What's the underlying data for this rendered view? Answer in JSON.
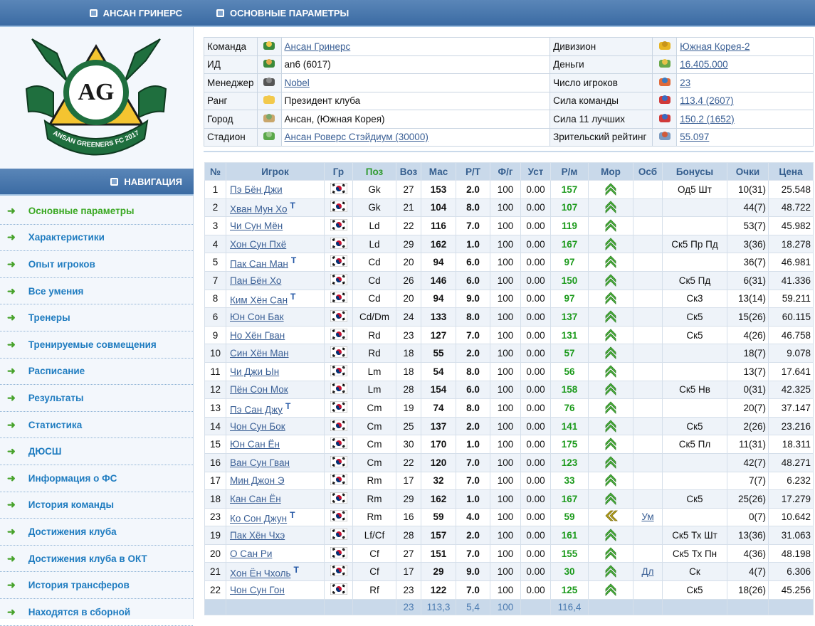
{
  "sidebar": {
    "title": "АНСАН ГРИНЕРС",
    "logo": {
      "monogram": "AG",
      "banner": "ANSAN GREENERS FC 2017"
    },
    "nav_title": "НАВИГАЦИЯ",
    "nav": [
      "Основные параметры",
      "Характеристики",
      "Опыт игроков",
      "Все умения",
      "Тренеры",
      "Тренируемые совмещения",
      "Расписание",
      "Результаты",
      "Статистика",
      "ДЮСШ",
      "Информация о ФС",
      "История команды",
      "Достижения клуба",
      "Достижения клуба в ОКТ",
      "История трансферов",
      "Находятся в сборной"
    ]
  },
  "main": {
    "title": "ОСНОВНЫЕ ПАРАМЕТРЫ",
    "info": [
      [
        {
          "label": "Команда",
          "value": "Ансан Гринерс",
          "link": true
        },
        {
          "label": "Дивизион",
          "value": "Южная Корея-2",
          "link": true
        }
      ],
      [
        {
          "label": "ИД",
          "value": "an6 (6017)",
          "link": false
        },
        {
          "label": "Деньги",
          "value": "16.405.000",
          "link": true
        }
      ],
      [
        {
          "label": "Менеджер",
          "value": "Nobel",
          "link": true
        },
        {
          "label": "Число игроков",
          "value": "23",
          "link": true
        }
      ],
      [
        {
          "label": "Ранг",
          "value": "Президент клуба",
          "link": false
        },
        {
          "label": "Сила команды",
          "value": "113.4 (2607)",
          "link": true
        }
      ],
      [
        {
          "label": "Город",
          "value": "Ансан, (Южная Корея)",
          "link": false
        },
        {
          "label": "Сила 11 лучших",
          "value": "150.2 (1652)",
          "link": true
        }
      ],
      [
        {
          "label": "Стадион",
          "value": "Ансан Роверс Стэйдиум (30000)",
          "link": true
        },
        {
          "label": "Зрительский рейтинг",
          "value": "55.097",
          "link": true
        }
      ]
    ],
    "players": {
      "columns": [
        "№",
        "Игрок",
        "Гр",
        "Поз",
        "Воз",
        "Мас",
        "Р/Т",
        "Ф/г",
        "Уст",
        "Р/м",
        "Мор",
        "Осб",
        "Бонусы",
        "Очки",
        "Цена"
      ],
      "rows": [
        {
          "n": "1",
          "name": "Пэ Бён Джи",
          "tag": null,
          "pos": "Gk",
          "age": "27",
          "mas": "153",
          "rt": "2.0",
          "fg": "100",
          "ust": "0.00",
          "rm": "157",
          "mor": "up",
          "osb": null,
          "bonus": "Од5 Шт",
          "pts": "10(31)",
          "price": "25.548"
        },
        {
          "n": "2",
          "name": "Хван Мун Хо",
          "tag": "Т",
          "pos": "Gk",
          "age": "21",
          "mas": "104",
          "rt": "8.0",
          "fg": "100",
          "ust": "0.00",
          "rm": "107",
          "mor": "up",
          "osb": null,
          "bonus": null,
          "pts": "44(7)",
          "price": "48.722"
        },
        {
          "n": "3",
          "name": "Чи Сун Мён",
          "tag": null,
          "pos": "Ld",
          "age": "22",
          "mas": "116",
          "rt": "7.0",
          "fg": "100",
          "ust": "0.00",
          "rm": "119",
          "mor": "up",
          "osb": null,
          "bonus": null,
          "pts": "53(7)",
          "price": "45.982"
        },
        {
          "n": "4",
          "name": "Хон Сун Пхё",
          "tag": null,
          "pos": "Ld",
          "age": "29",
          "mas": "162",
          "rt": "1.0",
          "fg": "100",
          "ust": "0.00",
          "rm": "167",
          "mor": "up",
          "osb": null,
          "bonus": "Ск5 Пр Пд",
          "pts": "3(36)",
          "price": "18.278"
        },
        {
          "n": "5",
          "name": "Пак Сан Ман",
          "tag": "Т",
          "pos": "Cd",
          "age": "20",
          "mas": "94",
          "rt": "6.0",
          "fg": "100",
          "ust": "0.00",
          "rm": "97",
          "mor": "up",
          "osb": null,
          "bonus": null,
          "pts": "36(7)",
          "price": "46.981"
        },
        {
          "n": "7",
          "name": "Пан Бён Хо",
          "tag": null,
          "pos": "Cd",
          "age": "26",
          "mas": "146",
          "rt": "6.0",
          "fg": "100",
          "ust": "0.00",
          "rm": "150",
          "mor": "up",
          "osb": null,
          "bonus": "Ск5 Пд",
          "pts": "6(31)",
          "price": "41.336"
        },
        {
          "n": "8",
          "name": "Ким Хён Сан",
          "tag": "Т",
          "pos": "Cd",
          "age": "20",
          "mas": "94",
          "rt": "9.0",
          "fg": "100",
          "ust": "0.00",
          "rm": "97",
          "mor": "up",
          "osb": null,
          "bonus": "Ск3",
          "pts": "13(14)",
          "price": "59.211"
        },
        {
          "n": "6",
          "name": "Юн Сон Бак",
          "tag": null,
          "pos": "Cd/Dm",
          "age": "24",
          "mas": "133",
          "rt": "8.0",
          "fg": "100",
          "ust": "0.00",
          "rm": "137",
          "mor": "up",
          "osb": null,
          "bonus": "Ск5",
          "pts": "15(26)",
          "price": "60.115"
        },
        {
          "n": "9",
          "name": "Но Хён Гван",
          "tag": null,
          "pos": "Rd",
          "age": "23",
          "mas": "127",
          "rt": "7.0",
          "fg": "100",
          "ust": "0.00",
          "rm": "131",
          "mor": "up",
          "osb": null,
          "bonus": "Ск5",
          "pts": "4(26)",
          "price": "46.758"
        },
        {
          "n": "10",
          "name": "Син Хён Ман",
          "tag": null,
          "pos": "Rd",
          "age": "18",
          "mas": "55",
          "rt": "2.0",
          "fg": "100",
          "ust": "0.00",
          "rm": "57",
          "mor": "up",
          "osb": null,
          "bonus": null,
          "pts": "18(7)",
          "price": "9.078"
        },
        {
          "n": "11",
          "name": "Чи Джи Ын",
          "tag": null,
          "pos": "Lm",
          "age": "18",
          "mas": "54",
          "rt": "8.0",
          "fg": "100",
          "ust": "0.00",
          "rm": "56",
          "mor": "up",
          "osb": null,
          "bonus": null,
          "pts": "13(7)",
          "price": "17.641"
        },
        {
          "n": "12",
          "name": "Пён Сон Мок",
          "tag": null,
          "pos": "Lm",
          "age": "28",
          "mas": "154",
          "rt": "6.0",
          "fg": "100",
          "ust": "0.00",
          "rm": "158",
          "mor": "up",
          "osb": null,
          "bonus": "Ск5 Нв",
          "pts": "0(31)",
          "price": "42.325"
        },
        {
          "n": "13",
          "name": "Пэ Сан Джу",
          "tag": "Т",
          "pos": "Cm",
          "age": "19",
          "mas": "74",
          "rt": "8.0",
          "fg": "100",
          "ust": "0.00",
          "rm": "76",
          "mor": "up",
          "osb": null,
          "bonus": null,
          "pts": "20(7)",
          "price": "37.147"
        },
        {
          "n": "14",
          "name": "Чон Сун Бок",
          "tag": null,
          "pos": "Cm",
          "age": "25",
          "mas": "137",
          "rt": "2.0",
          "fg": "100",
          "ust": "0.00",
          "rm": "141",
          "mor": "up",
          "osb": null,
          "bonus": "Ск5",
          "pts": "2(26)",
          "price": "23.216"
        },
        {
          "n": "15",
          "name": "Юн Сан Ён",
          "tag": null,
          "pos": "Cm",
          "age": "30",
          "mas": "170",
          "rt": "1.0",
          "fg": "100",
          "ust": "0.00",
          "rm": "175",
          "mor": "up",
          "osb": null,
          "bonus": "Ск5 Пл",
          "pts": "11(31)",
          "price": "18.311"
        },
        {
          "n": "16",
          "name": "Ван Сун Гван",
          "tag": null,
          "pos": "Cm",
          "age": "22",
          "mas": "120",
          "rt": "7.0",
          "fg": "100",
          "ust": "0.00",
          "rm": "123",
          "mor": "up",
          "osb": null,
          "bonus": null,
          "pts": "42(7)",
          "price": "48.271"
        },
        {
          "n": "17",
          "name": "Мин Джон Э",
          "tag": null,
          "pos": "Rm",
          "age": "17",
          "mas": "32",
          "rt": "7.0",
          "fg": "100",
          "ust": "0.00",
          "rm": "33",
          "mor": "up",
          "osb": null,
          "bonus": null,
          "pts": "7(7)",
          "price": "6.232"
        },
        {
          "n": "18",
          "name": "Кан Сан Ён",
          "tag": null,
          "pos": "Rm",
          "age": "29",
          "mas": "162",
          "rt": "1.0",
          "fg": "100",
          "ust": "0.00",
          "rm": "167",
          "mor": "up",
          "osb": null,
          "bonus": "Ск5",
          "pts": "25(26)",
          "price": "17.279"
        },
        {
          "n": "23",
          "name": "Ко Сон Джун",
          "tag": "Т",
          "pos": "Rm",
          "age": "16",
          "mas": "59",
          "rt": "4.0",
          "fg": "100",
          "ust": "0.00",
          "rm": "59",
          "mor": "left",
          "osb": "Ум",
          "bonus": null,
          "pts": "0(7)",
          "price": "10.642"
        },
        {
          "n": "19",
          "name": "Пак Хён Чхэ",
          "tag": null,
          "pos": "Lf/Cf",
          "age": "28",
          "mas": "157",
          "rt": "2.0",
          "fg": "100",
          "ust": "0.00",
          "rm": "161",
          "mor": "up",
          "osb": null,
          "bonus": "Ск5 Тх Шт",
          "pts": "13(36)",
          "price": "31.063"
        },
        {
          "n": "20",
          "name": "О Сан Ри",
          "tag": null,
          "pos": "Cf",
          "age": "27",
          "mas": "151",
          "rt": "7.0",
          "fg": "100",
          "ust": "0.00",
          "rm": "155",
          "mor": "up",
          "osb": null,
          "bonus": "Ск5 Тх Пн",
          "pts": "4(36)",
          "price": "48.198"
        },
        {
          "n": "21",
          "name": "Хон Ён Чхоль",
          "tag": "Т",
          "pos": "Cf",
          "age": "17",
          "mas": "29",
          "rt": "9.0",
          "fg": "100",
          "ust": "0.00",
          "rm": "30",
          "mor": "up",
          "osb": "Дл",
          "bonus": "Ск",
          "pts": "4(7)",
          "price": "6.306"
        },
        {
          "n": "22",
          "name": "Чон Сун Гон",
          "tag": null,
          "pos": "Rf",
          "age": "23",
          "mas": "122",
          "rt": "7.0",
          "fg": "100",
          "ust": "0.00",
          "rm": "125",
          "mor": "up",
          "osb": null,
          "bonus": "Ск5",
          "pts": "18(26)",
          "price": "45.256"
        }
      ],
      "totals": {
        "age": "23",
        "mas": "113,3",
        "rt": "5,4",
        "fg": "100",
        "rm": "116,4"
      }
    }
  }
}
